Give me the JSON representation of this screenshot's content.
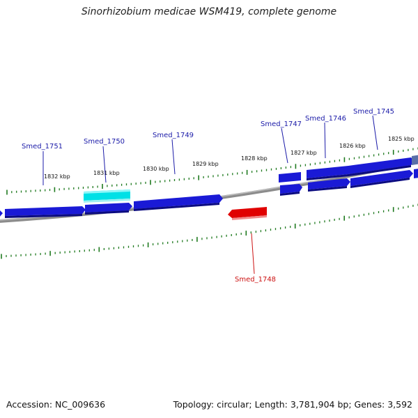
{
  "title": "Sinorhizobium medicae WSM419, complete genome",
  "footer": {
    "accession": "Accession: NC_009636",
    "stats": "Topology: circular; Length: 3,781,904 bp; Genes: 3,592"
  },
  "colors": {
    "forward_gene": "#1a1ad6",
    "selected_gene": "#00e0e6",
    "reverse_gene": "#e00000",
    "backbone": "#8c8c8c",
    "ticks": "#1f7a1f",
    "forward_label": "#1a1aa8",
    "reverse_label": "#cc1111"
  },
  "scale_labels": [
    "1832 kbp",
    "1831 kbp",
    "1830 kbp",
    "1829 kbp",
    "1828 kbp",
    "1827 kbp",
    "1826 kbp",
    "1825 kbp"
  ],
  "gene_labels": {
    "smed_1751": "Smed_1751",
    "smed_1750": "Smed_1750",
    "smed_1749": "Smed_1749",
    "smed_1748": "Smed_1748",
    "smed_1747": "Smed_1747",
    "smed_1746": "Smed_1746",
    "smed_1745": "Smed_1745"
  }
}
